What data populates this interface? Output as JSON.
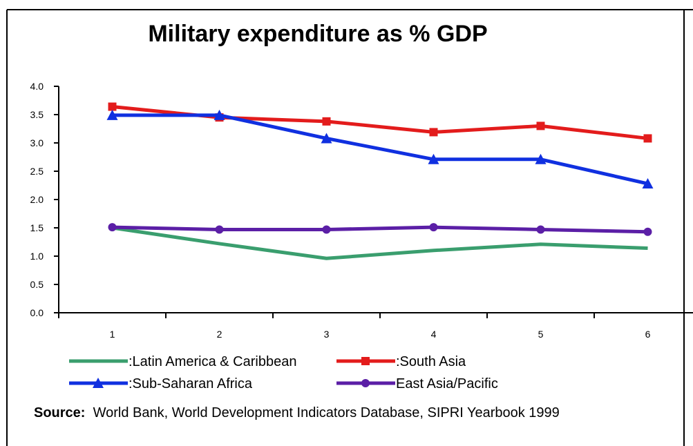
{
  "chart_data": {
    "type": "line",
    "title": "Military expenditure as % GDP",
    "xlabel": "",
    "ylabel": "",
    "categories": [
      "1",
      "2",
      "3",
      "4",
      "5",
      "6"
    ],
    "ylim": [
      0,
      4
    ],
    "yticks": [
      "0.0",
      "0.5",
      "1.0",
      "1.5",
      "2.0",
      "2.5",
      "3.0",
      "3.5",
      "4.0"
    ],
    "grid": false,
    "legend_position": "bottom",
    "series": [
      {
        "name": ":Latin America & Caribbean",
        "values": [
          1.5,
          1.22,
          0.96,
          1.1,
          1.21,
          1.14
        ],
        "color": "#3a9e6e",
        "marker": "none"
      },
      {
        "name": ":South Asia",
        "values": [
          3.64,
          3.45,
          3.38,
          3.19,
          3.3,
          3.08
        ],
        "color": "#e31c1c",
        "marker": "square"
      },
      {
        "name": ":Sub-Saharan Africa",
        "values": [
          3.49,
          3.49,
          3.08,
          2.71,
          2.71,
          2.28
        ],
        "color": "#1030e0",
        "marker": "triangle"
      },
      {
        "name": "East Asia/Pacific",
        "values": [
          1.51,
          1.47,
          1.47,
          1.51,
          1.47,
          1.43
        ],
        "color": "#5b1fa6",
        "marker": "circle"
      }
    ]
  },
  "source": {
    "label": "Source:",
    "text": "World Bank, World Development Indicators Database, SIPRI Yearbook 1999"
  }
}
